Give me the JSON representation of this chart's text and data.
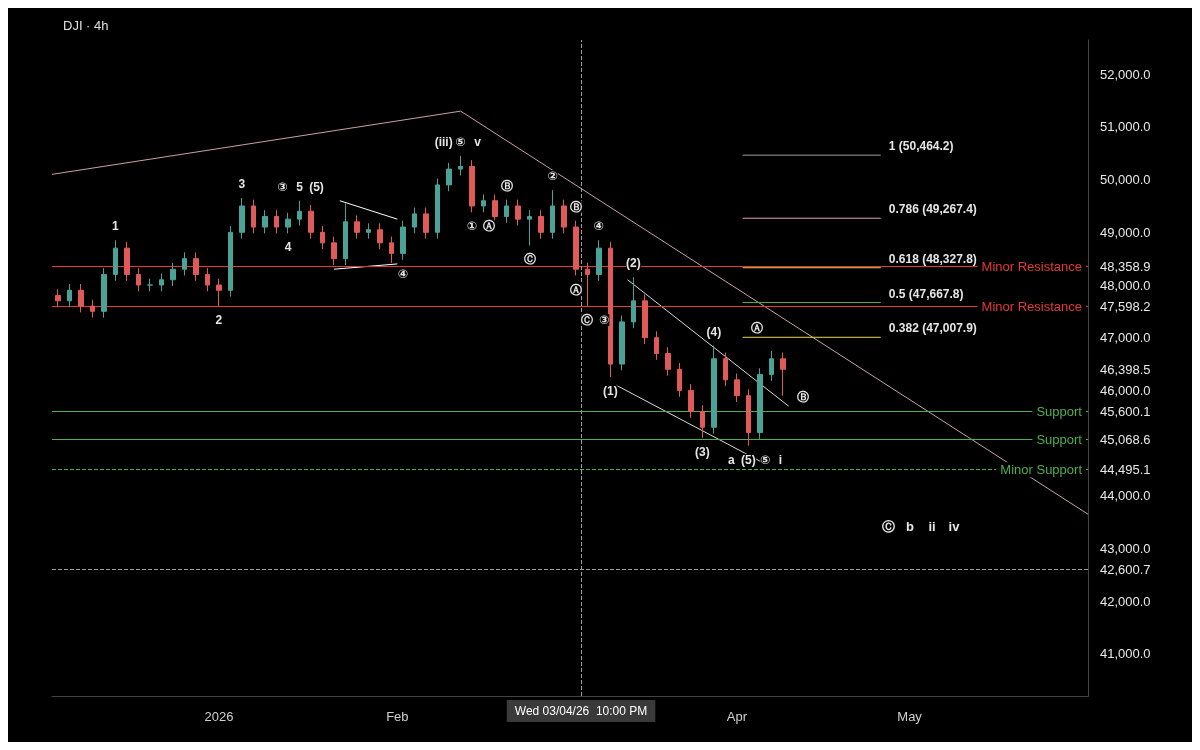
{
  "chart_data": {
    "type": "candlestick",
    "title": "DJI · 4h",
    "x": [
      "2025-12-04",
      "2025-12-06",
      "2025-12-08",
      "2025-12-10",
      "2025-12-12",
      "2025-12-14",
      "2025-12-16",
      "2025-12-18",
      "2025-12-20",
      "2025-12-22",
      "2025-12-24",
      "2025-12-26",
      "2025-12-28",
      "2025-12-30",
      "2026-01-01",
      "2026-01-03",
      "2026-01-05",
      "2026-01-07",
      "2026-01-09",
      "2026-01-11",
      "2026-01-13",
      "2026-01-15",
      "2026-01-17",
      "2026-01-19",
      "2026-01-21",
      "2026-01-23",
      "2026-01-25",
      "2026-01-27",
      "2026-01-29",
      "2026-01-31",
      "2026-02-02",
      "2026-02-04",
      "2026-02-06",
      "2026-02-08",
      "2026-02-10",
      "2026-02-12",
      "2026-02-14",
      "2026-02-16",
      "2026-02-18",
      "2026-02-20",
      "2026-02-22",
      "2026-02-24",
      "2026-02-26",
      "2026-02-28",
      "2026-03-02",
      "2026-03-04",
      "2026-03-06",
      "2026-03-08",
      "2026-03-10",
      "2026-03-12",
      "2026-03-14",
      "2026-03-16",
      "2026-03-18",
      "2026-03-20",
      "2026-03-22",
      "2026-03-24",
      "2026-03-26",
      "2026-03-28",
      "2026-03-30",
      "2026-04-01",
      "2026-04-03",
      "2026-04-05",
      "2026-04-07",
      "2026-04-09"
    ],
    "ohlc": [
      [
        47800,
        47920,
        47580,
        47700
      ],
      [
        47700,
        48020,
        47580,
        47900
      ],
      [
        47900,
        48020,
        47480,
        47600
      ],
      [
        47600,
        47720,
        47380,
        47500
      ],
      [
        47500,
        48320,
        47380,
        48200
      ],
      [
        48200,
        48850,
        48080,
        48700
      ],
      [
        48700,
        48820,
        48080,
        48200
      ],
      [
        48200,
        48320,
        47880,
        48000
      ],
      [
        48000,
        48120,
        47880,
        48000
      ],
      [
        48000,
        48220,
        47880,
        48100
      ],
      [
        48100,
        48420,
        47980,
        48300
      ],
      [
        48300,
        48620,
        48180,
        48500
      ],
      [
        48500,
        48620,
        48080,
        48200
      ],
      [
        48200,
        48320,
        47880,
        48000
      ],
      [
        48000,
        48120,
        47600,
        47900
      ],
      [
        47900,
        49120,
        47780,
        49000
      ],
      [
        49000,
        49650,
        48880,
        49500
      ],
      [
        49500,
        49620,
        48980,
        49100
      ],
      [
        49100,
        49420,
        48980,
        49300
      ],
      [
        49300,
        49420,
        48980,
        49100
      ],
      [
        49100,
        49370,
        48980,
        49250
      ],
      [
        49250,
        49600,
        49130,
        49400
      ],
      [
        49400,
        49520,
        48880,
        49000
      ],
      [
        49000,
        49120,
        48680,
        48800
      ],
      [
        48800,
        48920,
        48380,
        48500
      ],
      [
        48500,
        49550,
        48380,
        49200
      ],
      [
        49200,
        49320,
        48880,
        49000
      ],
      [
        49000,
        49170,
        48880,
        49050
      ],
      [
        49050,
        49170,
        48680,
        48800
      ],
      [
        48800,
        48920,
        48420,
        48600
      ],
      [
        48600,
        49220,
        48480,
        49100
      ],
      [
        49100,
        49470,
        48980,
        49350
      ],
      [
        49350,
        49470,
        48880,
        49000
      ],
      [
        49000,
        50020,
        48880,
        49900
      ],
      [
        49900,
        50320,
        49780,
        50200
      ],
      [
        50200,
        50450,
        50080,
        50250
      ],
      [
        50250,
        50370,
        49380,
        49500
      ],
      [
        49500,
        49720,
        49380,
        49600
      ],
      [
        49600,
        49720,
        49180,
        49300
      ],
      [
        49300,
        49620,
        49180,
        49500
      ],
      [
        49500,
        49620,
        49130,
        49250
      ],
      [
        49250,
        49420,
        48750,
        49300
      ],
      [
        49300,
        49420,
        48880,
        49000
      ],
      [
        49000,
        49800,
        48880,
        49500
      ],
      [
        49500,
        49620,
        48980,
        49100
      ],
      [
        49100,
        49220,
        48180,
        48300
      ],
      [
        48300,
        48420,
        47600,
        48200
      ],
      [
        48200,
        48850,
        48080,
        48700
      ],
      [
        48700,
        48820,
        46250,
        46500
      ],
      [
        46500,
        47420,
        46380,
        47300
      ],
      [
        47300,
        48150,
        47180,
        47700
      ],
      [
        47700,
        47820,
        46880,
        47000
      ],
      [
        47000,
        47120,
        46580,
        46700
      ],
      [
        46700,
        46820,
        46280,
        46400
      ],
      [
        46400,
        46520,
        45880,
        46000
      ],
      [
        46000,
        46120,
        45480,
        45600
      ],
      [
        45600,
        45720,
        45100,
        45300
      ],
      [
        45300,
        46850,
        45180,
        46600
      ],
      [
        46600,
        46720,
        46080,
        46200
      ],
      [
        46200,
        46320,
        45780,
        45900
      ],
      [
        45900,
        46020,
        44950,
        45200
      ],
      [
        45200,
        46420,
        45080,
        46300
      ],
      [
        46300,
        46750,
        46180,
        46600
      ],
      [
        46600,
        46720,
        45900,
        46400
      ]
    ],
    "series": [
      {
        "type": "line",
        "color": "#c9a0a8",
        "x": [
          "2025-12-03",
          "2026-02-12",
          "2026-06-01"
        ],
        "values": [
          50100,
          51300,
          43650
        ]
      },
      {
        "type": "line",
        "color": "#d8d8d8",
        "x": [
          "2026-03-13",
          "2026-04-10"
        ],
        "values": [
          48100,
          45700
        ]
      },
      {
        "type": "line",
        "color": "#d8d8d8",
        "x": [
          "2026-03-11",
          "2026-04-06"
        ],
        "values": [
          46100,
          44600
        ]
      },
      {
        "type": "line",
        "color": "#ffffff",
        "x": [
          "2026-01-22",
          "2026-02-01"
        ],
        "values": [
          49600,
          49250
        ]
      },
      {
        "type": "line",
        "color": "#ffffff",
        "x": [
          "2026-01-21",
          "2026-02-01"
        ],
        "values": [
          48300,
          48400
        ]
      },
      {
        "type": "line",
        "color": "#9e9e9e",
        "x": [
          "2026-04-02",
          "2026-04-26"
        ],
        "values": [
          50464.2,
          50464.2
        ]
      },
      {
        "type": "line",
        "color": "#e8a0b0",
        "x": [
          "2026-04-02",
          "2026-04-26"
        ],
        "values": [
          49267.4,
          49267.4
        ]
      },
      {
        "type": "line",
        "color": "#e8d44d",
        "x": [
          "2026-04-02",
          "2026-04-26"
        ],
        "values": [
          48327.8,
          48327.8
        ]
      },
      {
        "type": "line",
        "color": "#4caf50",
        "x": [
          "2026-04-02",
          "2026-04-26"
        ],
        "values": [
          47667.8,
          47667.8
        ]
      },
      {
        "type": "line",
        "color": "#e8d44d",
        "x": [
          "2026-04-02",
          "2026-04-26"
        ],
        "values": [
          47007.9,
          47007.9
        ]
      }
    ],
    "ref_lines": [
      {
        "axis": "y",
        "value": 48358.9,
        "label": "Minor Resistance",
        "color": "#e53935"
      },
      {
        "axis": "y",
        "value": 47598.2,
        "label": "Minor Resistance",
        "color": "#e53935"
      },
      {
        "axis": "y",
        "value": 45600.1,
        "label": "Support",
        "color": "#4caf50"
      },
      {
        "axis": "y",
        "value": 45068.6,
        "label": "Support",
        "color": "#4caf50"
      },
      {
        "axis": "y",
        "value": 44495.1,
        "label": "Minor Support",
        "color": "#4caf50",
        "line_style": "dashed"
      },
      {
        "axis": "y",
        "value": 42600.7,
        "label": null,
        "color": "#9e9e9e",
        "line_style": "dashed"
      },
      {
        "axis": "x",
        "value": "2026-03-04T22:00",
        "label": "Wed 03/04/26  10:00 PM",
        "color": "#9e9e9e",
        "line_style": "dashed"
      }
    ],
    "annotations": [
      {
        "text": "1 (50,464.2)",
        "x": "2026-04-26",
        "y": 50464.2
      },
      {
        "text": "0.786 (49,267.4)",
        "x": "2026-04-26",
        "y": 49267.4
      },
      {
        "text": "0.618 (48,327.8)",
        "x": "2026-04-26",
        "y": 48327.8
      },
      {
        "text": "0.5 (47,667.8)",
        "x": "2026-04-26",
        "y": 47667.8
      },
      {
        "text": "0.382 (47,007.9)",
        "x": "2026-04-26",
        "y": 47007.9
      },
      {
        "text": "1",
        "x": "2025-12-14",
        "y": 48850
      },
      {
        "text": "2",
        "x": "2026-01-01",
        "y": 47600
      },
      {
        "text": "3",
        "x": "2026-01-05",
        "y": 49650
      },
      {
        "text": "4",
        "x": "2026-01-13",
        "y": 48980
      },
      {
        "text": "5",
        "x": "2026-01-15",
        "y": 49600
      },
      {
        "text": "(5)",
        "x": "2026-01-15",
        "y": 49600
      },
      {
        "text": "③",
        "x": "2026-01-15",
        "y": 49600
      },
      {
        "text": "④",
        "x": "2026-02-02",
        "y": 48480
      },
      {
        "text": "⑤",
        "x": "2026-02-12",
        "y": 50450
      },
      {
        "text": "v",
        "x": "2026-02-12",
        "y": 50450
      },
      {
        "text": "(iii)",
        "x": "2026-02-12",
        "y": 50450
      },
      {
        "text": "①",
        "x": "2026-02-14",
        "y": 49380
      },
      {
        "text": "Ⓐ",
        "x": "2026-02-14",
        "y": 49380
      },
      {
        "text": "Ⓑ",
        "x": "2026-02-20",
        "y": 49620
      },
      {
        "text": "Ⓒ",
        "x": "2026-02-24",
        "y": 48750
      },
      {
        "text": "②",
        "x": "2026-02-28",
        "y": 49800
      },
      {
        "text": "Ⓑ",
        "x": "2026-03-04",
        "y": 49220
      },
      {
        "text": "④",
        "x": "2026-03-08",
        "y": 48850
      },
      {
        "text": "Ⓐ",
        "x": "2026-03-04",
        "y": 48180
      },
      {
        "text": "Ⓒ",
        "x": "2026-03-06",
        "y": 47600
      },
      {
        "text": "③",
        "x": "2026-03-06",
        "y": 47600
      },
      {
        "text": "(2)",
        "x": "2026-03-14",
        "y": 48150
      },
      {
        "text": "(1)",
        "x": "2026-03-10",
        "y": 46250
      },
      {
        "text": "(4)",
        "x": "2026-03-28",
        "y": 46850
      },
      {
        "text": "(3)",
        "x": "2026-03-26",
        "y": 45100
      },
      {
        "text": "(5)",
        "x": "2026-04-03",
        "y": 44950
      },
      {
        "text": "⑤",
        "x": "2026-04-03",
        "y": 44950
      },
      {
        "text": "a",
        "x": "2026-04-03",
        "y": 44950
      },
      {
        "text": "i",
        "x": "2026-04-03",
        "y": 44950
      },
      {
        "text": "Ⓐ",
        "x": "2026-04-02",
        "y": 47007.9
      },
      {
        "text": "Ⓑ",
        "x": "2026-04-10",
        "y": 45700
      },
      "Ⓒ",
      "b",
      "ii",
      "iv"
    ],
    "xlim": [
      "2025-12-03",
      "2026-06-01"
    ],
    "xticks": [
      {
        "value": "2026-01-01",
        "label": "2026"
      },
      {
        "value": "2026-02-01",
        "label": "Feb"
      },
      {
        "value": "2026-04-01",
        "label": "Apr"
      },
      {
        "value": "2026-05-01",
        "label": "May"
      }
    ],
    "ylim": [
      40200,
      52650
    ],
    "yticks": [
      {
        "value": 41000,
        "label": "41,000.0"
      },
      {
        "value": 42000,
        "label": "42,000.0"
      },
      {
        "value": 42600.7,
        "label": "42,600.7"
      },
      {
        "value": 43000,
        "label": "43,000.0"
      },
      {
        "value": 44000,
        "label": "44,000.0"
      },
      {
        "value": 44495.1,
        "label": "44,495.1"
      },
      {
        "value": 45068.6,
        "label": "45,068.6"
      },
      {
        "value": 45600.1,
        "label": "45,600.1"
      },
      {
        "value": 46000,
        "label": "46,000.0"
      },
      {
        "value": 46398.5,
        "label": "46,398.5"
      },
      {
        "value": 47000,
        "label": "47,000.0"
      },
      {
        "value": 47598.2,
        "label": "47,598.2"
      },
      {
        "value": 48000,
        "label": "48,000.0"
      },
      {
        "value": 48358.9,
        "label": "48,358.9"
      },
      {
        "value": 49000,
        "label": "49,000.0"
      },
      {
        "value": 50000,
        "label": "50,000.0"
      },
      {
        "value": 51000,
        "label": "51,000.0"
      },
      {
        "value": 52000,
        "label": "52,000.0"
      }
    ],
    "grid": false,
    "marker": "none",
    "line_style": "solid"
  }
}
